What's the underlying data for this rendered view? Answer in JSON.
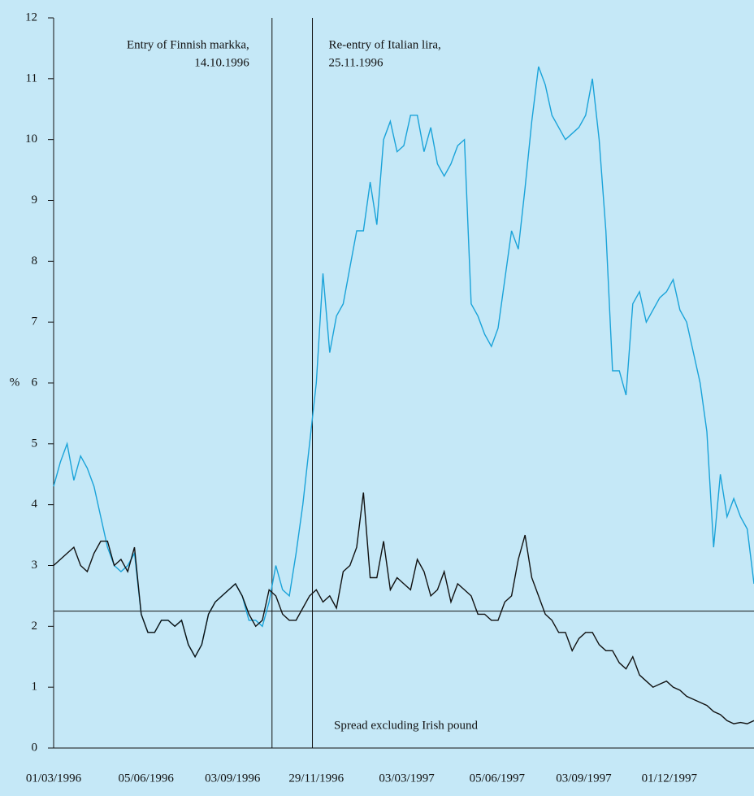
{
  "chart_data": {
    "type": "line",
    "y_label": "%",
    "x": [
      "1996-03-01",
      "1996-03-08",
      "1996-03-15",
      "1996-03-22",
      "1996-03-29",
      "1996-04-05",
      "1996-04-12",
      "1996-04-19",
      "1996-04-26",
      "1996-05-03",
      "1996-05-10",
      "1996-05-17",
      "1996-05-24",
      "1996-05-31",
      "1996-06-07",
      "1996-06-14",
      "1996-06-21",
      "1996-06-28",
      "1996-07-05",
      "1996-07-12",
      "1996-07-19",
      "1996-07-26",
      "1996-08-02",
      "1996-08-09",
      "1996-08-16",
      "1996-08-23",
      "1996-08-30",
      "1996-09-06",
      "1996-09-13",
      "1996-09-20",
      "1996-09-27",
      "1996-10-04",
      "1996-10-11",
      "1996-10-18",
      "1996-10-25",
      "1996-11-01",
      "1996-11-08",
      "1996-11-15",
      "1996-11-22",
      "1996-11-29",
      "1996-12-06",
      "1996-12-13",
      "1996-12-20",
      "1996-12-27",
      "1997-01-03",
      "1997-01-10",
      "1997-01-17",
      "1997-01-24",
      "1997-01-31",
      "1997-02-07",
      "1997-02-14",
      "1997-02-21",
      "1997-02-28",
      "1997-03-07",
      "1997-03-14",
      "1997-03-21",
      "1997-03-28",
      "1997-04-04",
      "1997-04-11",
      "1997-04-18",
      "1997-04-25",
      "1997-05-02",
      "1997-05-09",
      "1997-05-16",
      "1997-05-23",
      "1997-05-30",
      "1997-06-06",
      "1997-06-13",
      "1997-06-20",
      "1997-06-27",
      "1997-07-04",
      "1997-07-11",
      "1997-07-18",
      "1997-07-25",
      "1997-08-01",
      "1997-08-08",
      "1997-08-15",
      "1997-08-22",
      "1997-08-29",
      "1997-09-05",
      "1997-09-12",
      "1997-09-19",
      "1997-09-26",
      "1997-10-03",
      "1997-10-10",
      "1997-10-17",
      "1997-10-24",
      "1997-10-31",
      "1997-11-07",
      "1997-11-14",
      "1997-11-21",
      "1997-11-28",
      "1997-12-05",
      "1997-12-12",
      "1997-12-19",
      "1997-12-26",
      "1998-01-02",
      "1998-01-09",
      "1998-01-16",
      "1998-01-23",
      "1998-01-30",
      "1998-02-06",
      "1998-02-13",
      "1998-02-20",
      "1998-02-27"
    ],
    "series": [
      {
        "color": "#1aa3d9",
        "values": [
          4.3,
          4.7,
          5.0,
          4.4,
          4.8,
          4.6,
          4.3,
          3.8,
          3.3,
          3.0,
          2.9,
          3.0,
          3.2,
          2.2,
          1.9,
          1.9,
          2.1,
          2.1,
          2.0,
          2.1,
          1.7,
          1.5,
          1.7,
          2.2,
          2.4,
          2.5,
          2.6,
          2.7,
          2.5,
          2.1,
          2.1,
          2.0,
          2.4,
          3.0,
          2.6,
          2.5,
          3.2,
          4.0,
          5.0,
          6.0,
          7.8,
          6.5,
          7.1,
          7.3,
          7.9,
          8.5,
          8.5,
          9.3,
          8.6,
          10.0,
          10.3,
          9.8,
          9.9,
          10.4,
          10.4,
          9.8,
          10.2,
          9.6,
          9.4,
          9.6,
          9.9,
          10.0,
          7.3,
          7.1,
          6.8,
          6.6,
          6.9,
          7.7,
          8.5,
          8.2,
          9.2,
          10.3,
          11.2,
          10.9,
          10.4,
          10.2,
          10.0,
          10.1,
          10.2,
          10.4,
          11.0,
          10.0,
          8.5,
          6.2,
          6.2,
          5.8,
          7.3,
          7.5,
          7.0,
          7.2,
          7.4,
          7.5,
          7.7,
          7.2,
          7.0,
          6.5,
          6.0,
          5.2,
          3.3,
          4.5,
          3.8,
          4.1,
          3.8,
          3.6,
          2.7
        ]
      },
      {
        "color": "#111111",
        "values": [
          3.0,
          3.1,
          3.2,
          3.3,
          3.0,
          2.9,
          3.2,
          3.4,
          3.4,
          3.0,
          3.1,
          2.9,
          3.3,
          2.2,
          1.9,
          1.9,
          2.1,
          2.1,
          2.0,
          2.1,
          1.7,
          1.5,
          1.7,
          2.2,
          2.4,
          2.5,
          2.6,
          2.7,
          2.5,
          2.2,
          2.0,
          2.1,
          2.6,
          2.5,
          2.2,
          2.1,
          2.1,
          2.3,
          2.5,
          2.6,
          2.4,
          2.5,
          2.3,
          2.9,
          3.0,
          3.3,
          4.2,
          2.8,
          2.8,
          3.4,
          2.6,
          2.8,
          2.7,
          2.6,
          3.1,
          2.9,
          2.5,
          2.6,
          2.9,
          2.4,
          2.7,
          2.6,
          2.5,
          2.2,
          2.2,
          2.1,
          2.1,
          2.4,
          2.5,
          3.1,
          3.5,
          2.8,
          2.5,
          2.2,
          2.1,
          1.9,
          1.9,
          1.6,
          1.8,
          1.9,
          1.9,
          1.7,
          1.6,
          1.6,
          1.4,
          1.3,
          1.5,
          1.2,
          1.1,
          1.0,
          1.05,
          1.1,
          1.0,
          0.95,
          0.85,
          0.8,
          0.75,
          0.7,
          0.6,
          0.55,
          0.45,
          0.4,
          0.42,
          0.4,
          0.45
        ]
      }
    ],
    "xlim": [
      "1996-03-01",
      "1998-02-27"
    ],
    "xticks": [
      {
        "value": "1996-03-01",
        "label": "01/03/1996"
      },
      {
        "value": "1996-06-05",
        "label": "05/06/1996"
      },
      {
        "value": "1996-09-03",
        "label": "03/09/1996"
      },
      {
        "value": "1996-11-29",
        "label": "29/11/1996"
      },
      {
        "value": "1997-03-03",
        "label": "03/03/1997"
      },
      {
        "value": "1997-06-05",
        "label": "05/06/1997"
      },
      {
        "value": "1997-09-03",
        "label": "03/09/1997"
      },
      {
        "value": "1997-12-01",
        "label": "01/12/1997"
      }
    ],
    "ylim": [
      0,
      12
    ],
    "yticks": [
      0,
      1,
      2,
      3,
      4,
      5,
      6,
      7,
      8,
      9,
      10,
      11,
      12
    ],
    "hline": 2.25,
    "vlines": [
      {
        "x": "1996-10-14",
        "text": [
          "Entry of Finnish markka,",
          "14.10.1996"
        ]
      },
      {
        "x": "1996-11-25",
        "text": [
          "Re-entry of Italian lira,",
          "25.11.1996"
        ]
      }
    ],
    "note": "Spread excluding Irish pound"
  }
}
